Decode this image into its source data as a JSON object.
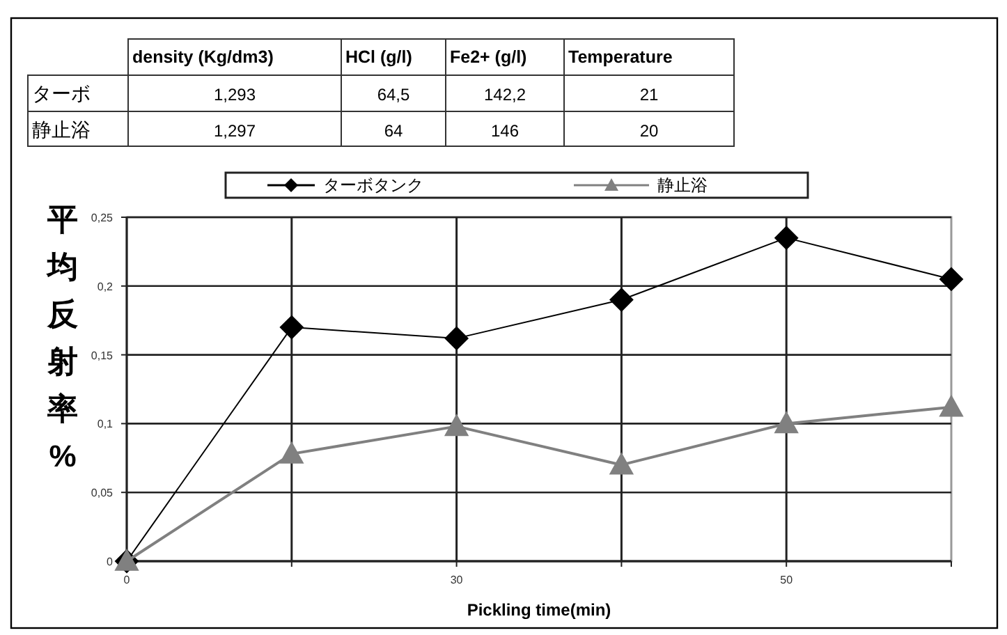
{
  "chart_data": [
    {
      "type": "other",
      "categories": [
        "density (Kg/dm3)",
        "HCl (g/l)",
        "Fe2+ (g/l)",
        "Temperature"
      ],
      "y_categories": [
        "ターボ",
        "静止浴"
      ],
      "cells": [
        [
          "1,293",
          "64,5",
          "142,2",
          "21"
        ],
        [
          "1,297",
          "64",
          "146",
          "20"
        ]
      ]
    },
    {
      "type": "line",
      "xlabel": "Pickling time(min)",
      "ylabel": "平均反射率%",
      "categories": [
        "0",
        null,
        "30",
        null,
        "50",
        null
      ],
      "ylim": [
        0,
        0.25
      ],
      "yticks": [
        {
          "value": 0,
          "label": "0"
        },
        {
          "value": 0.05,
          "label": "0,05"
        },
        {
          "value": 0.1,
          "label": "0,1"
        },
        {
          "value": 0.15,
          "label": "0,15"
        },
        {
          "value": 0.2,
          "label": "0,2"
        },
        {
          "value": 0.25,
          "label": "0,25"
        }
      ],
      "grid": true,
      "legend": "top",
      "line_style": "solid",
      "series": [
        {
          "name": "ターボタンク",
          "color": "#000000",
          "marker": "diamond",
          "values": [
            0,
            0.17,
            0.162,
            0.19,
            0.235,
            0.205
          ]
        },
        {
          "name": "静止浴",
          "color": "#808080",
          "marker": "triangle",
          "values": [
            0,
            0.078,
            0.098,
            0.07,
            0.1,
            0.112
          ]
        }
      ]
    }
  ]
}
